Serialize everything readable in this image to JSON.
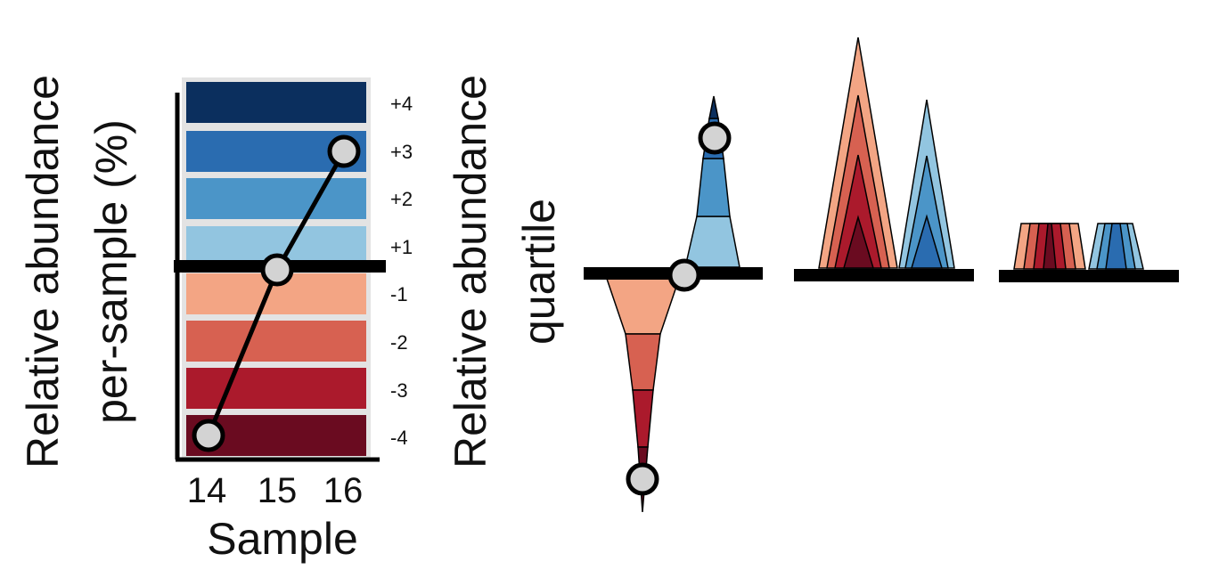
{
  "left_panel": {
    "ylabel_line1": "Relative abundance",
    "ylabel_line2": "per-sample (%)",
    "xlabel": "Sample",
    "samples": [
      "14",
      "15",
      "16"
    ],
    "bands": [
      {
        "label": "+4",
        "color": "#0b2f5e"
      },
      {
        "label": "+3",
        "color": "#2a6cb0"
      },
      {
        "label": "+2",
        "color": "#4b95c8"
      },
      {
        "label": "+1",
        "color": "#92c5e0"
      },
      {
        "label": "-1",
        "color": "#f3a584"
      },
      {
        "label": "-2",
        "color": "#d76151"
      },
      {
        "label": "-3",
        "color": "#ab1a2c"
      },
      {
        "label": "-4",
        "color": "#6a0b20"
      }
    ],
    "line_levels": [
      -3.8,
      0,
      3
    ]
  },
  "right_panel": {
    "ylabel_line1": "Relative abundance",
    "ylabel_line2": "quartile"
  },
  "colors": {
    "blue": [
      "#92c5e0",
      "#4b95c8",
      "#2a6cb0",
      "#0b2f5e"
    ],
    "red": [
      "#f3a584",
      "#d76151",
      "#ab1a2c",
      "#6a0b20"
    ],
    "marker": "#d3d3d3",
    "band_frame": "#e3e3e3"
  }
}
